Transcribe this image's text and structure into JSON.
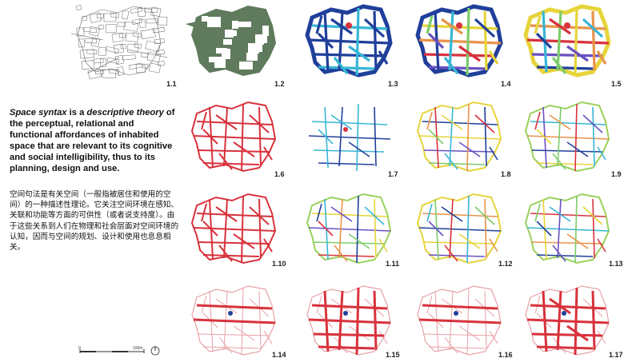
{
  "description": {
    "part1": "Space syntax",
    "part2": " is a ",
    "part3": "descriptive theory",
    "part4": " of the perceptual, relational and functional affordances of inhabited space that are relevant to its cognitive and social intelligibility, thus to its planning, design and use."
  },
  "chinese_text": "空间句法是有关空间（一般指被居住和使用的空间）的一种描述性理论。它关注空间环境在感知、关联和功能等方面的可供性（或者说支持度）。由于这些关系到人们在物理和社会层面对空间环境的认知，因而与空间的规划、设计和使用也息息相关。",
  "scalebar": {
    "zero": "0",
    "end": "100m"
  },
  "panels": [
    {
      "label": "1.1",
      "style": "cadastral"
    },
    {
      "label": "1.2",
      "style": "blocks"
    },
    {
      "label": "1.3",
      "style": "convex"
    },
    {
      "label": "1.4",
      "style": "convex"
    },
    {
      "label": "1.5",
      "style": "convex"
    },
    {
      "label": "1.6",
      "style": "axial-red"
    },
    {
      "label": "1.7",
      "style": "axial-partial"
    },
    {
      "label": "1.8",
      "style": "axial-multi"
    },
    {
      "label": "1.9",
      "style": "axial-multi"
    },
    {
      "label": "1.10",
      "style": "segment-red"
    },
    {
      "label": "1.11",
      "style": "segment-multi"
    },
    {
      "label": "1.12",
      "style": "segment-multi"
    },
    {
      "label": "1.13",
      "style": "segment-multi"
    },
    {
      "label": "1.14",
      "style": "step-depth"
    },
    {
      "label": "1.15",
      "style": "step-depth"
    },
    {
      "label": "1.16",
      "style": "step-depth"
    },
    {
      "label": "1.17",
      "style": "step-depth"
    }
  ],
  "colors": {
    "red": "#d8323c",
    "green": "#5f7a5c",
    "blue": "#1f3f9a",
    "cyan": "#38b6d6",
    "yellow": "#e6d43a",
    "lightred": "#e7a0a6",
    "cad": "#666666"
  }
}
